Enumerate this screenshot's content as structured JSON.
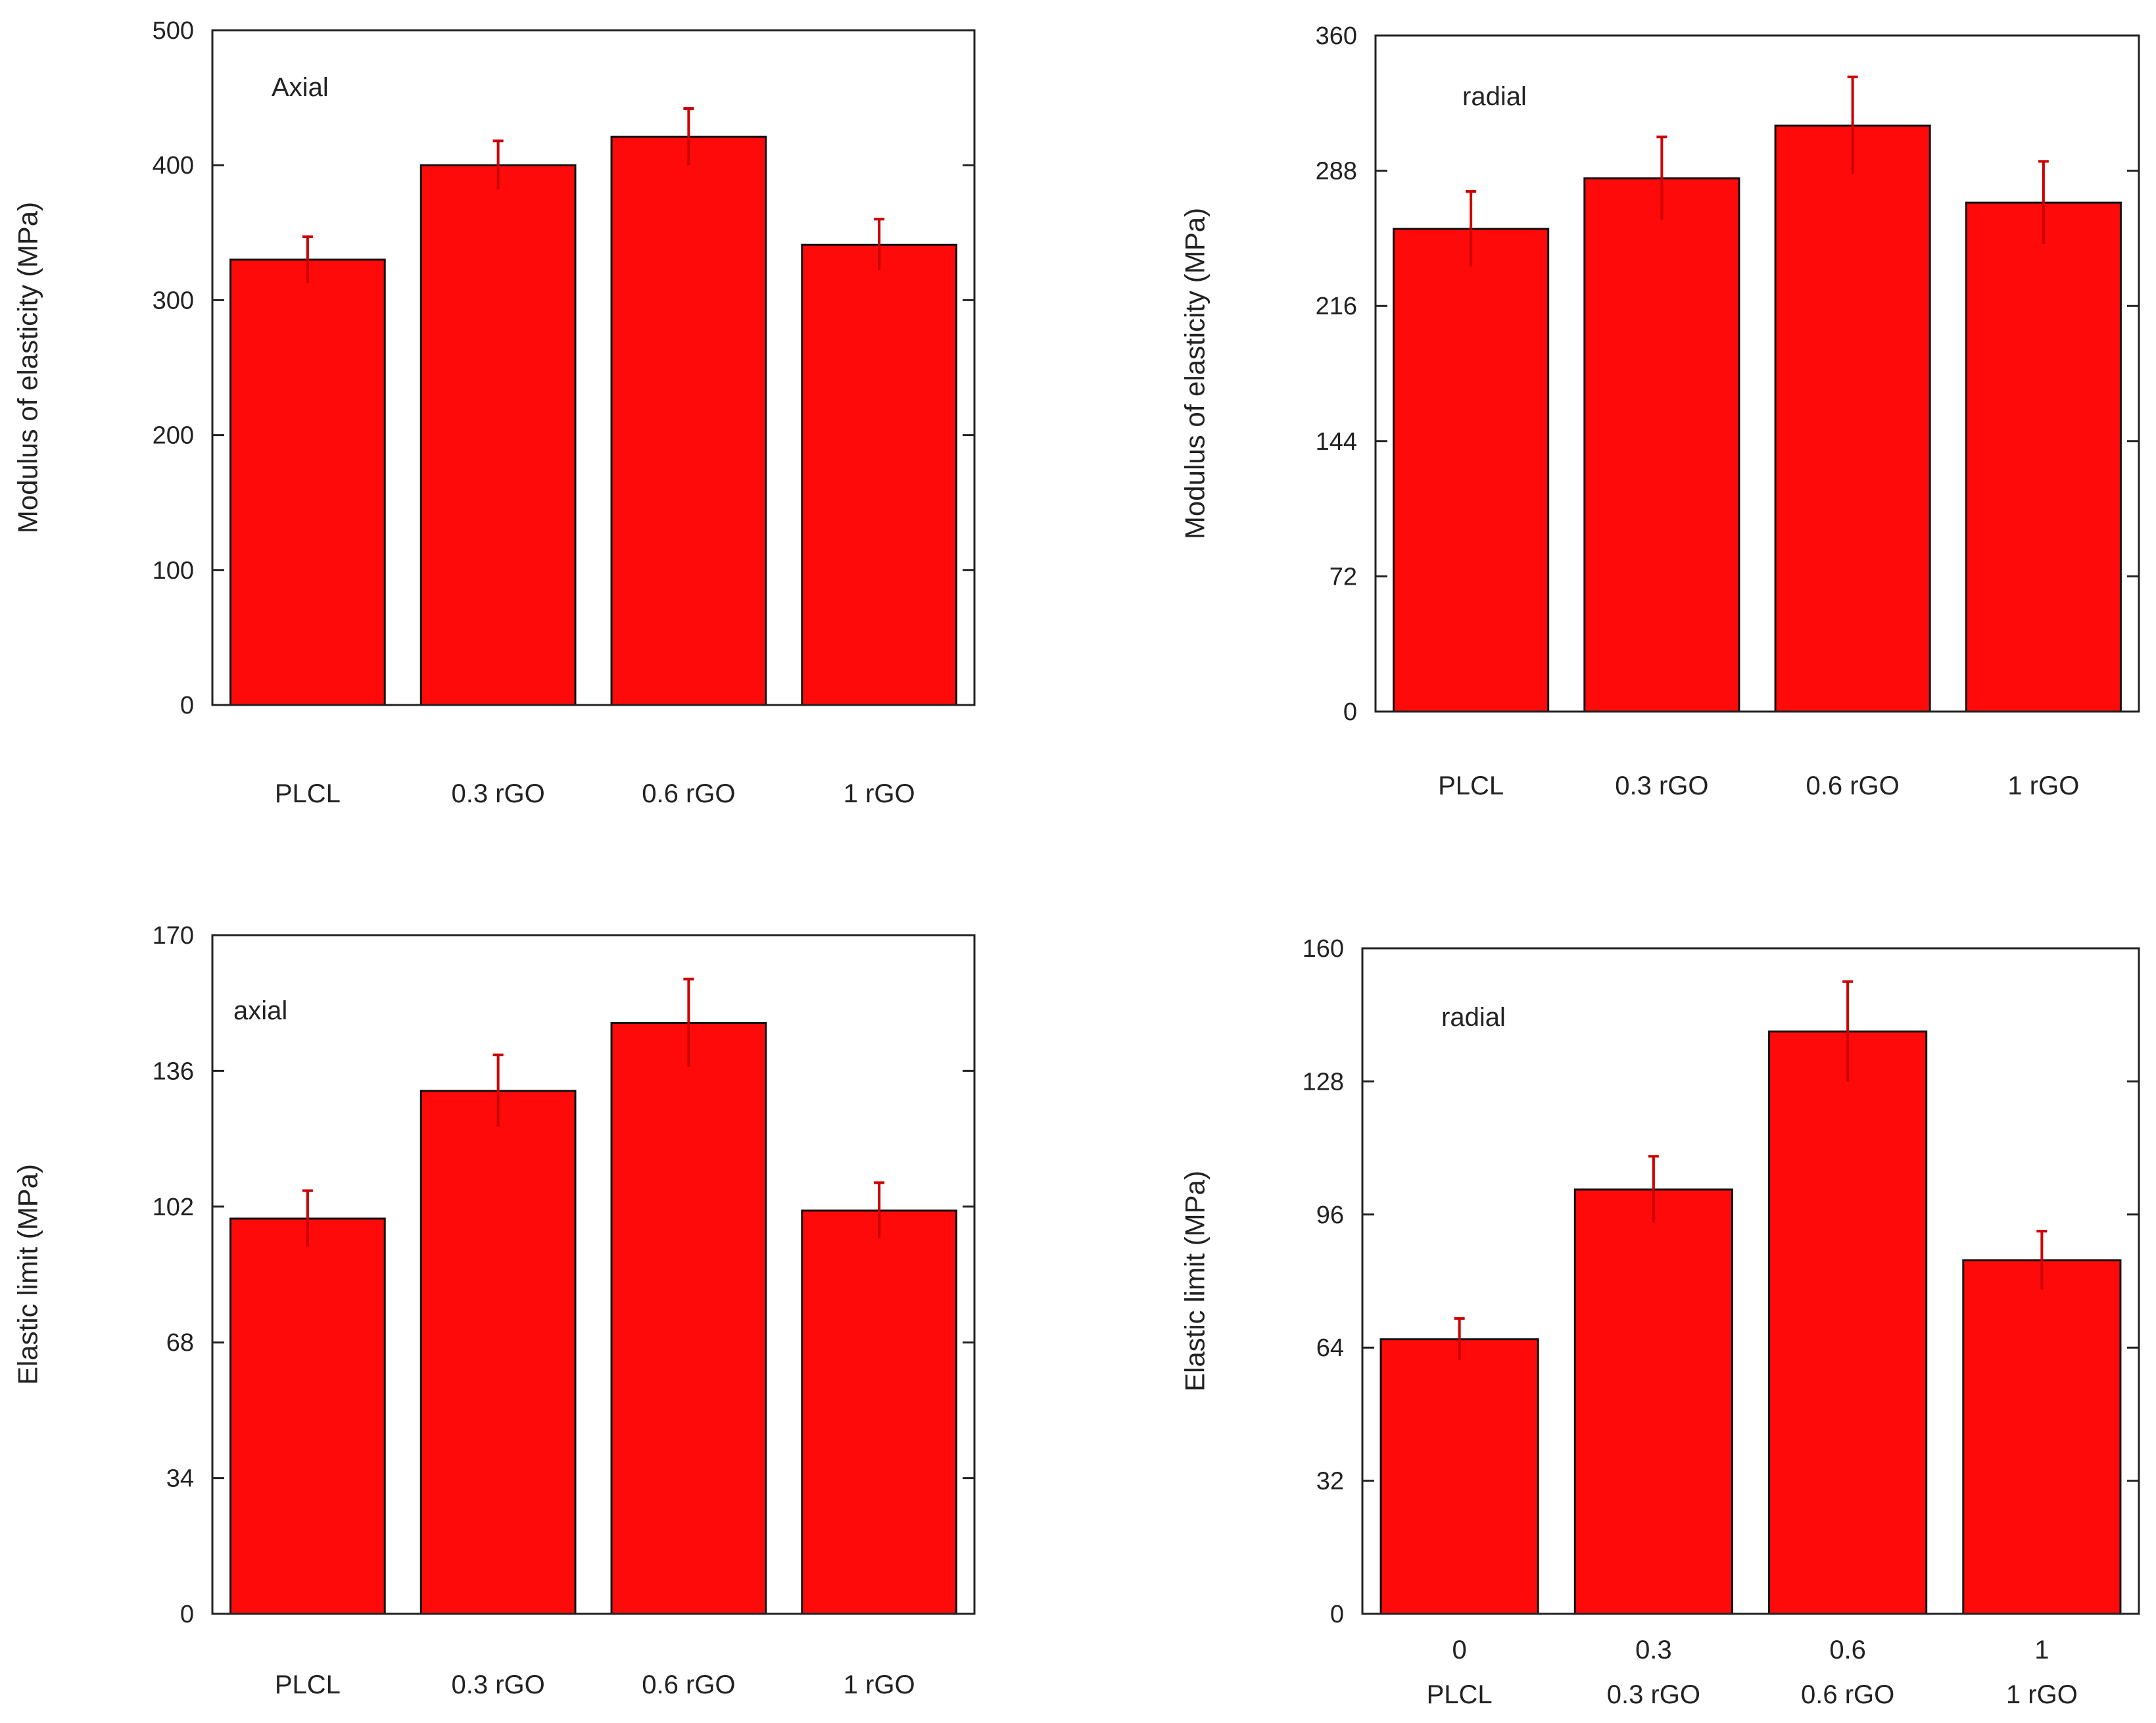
{
  "colors": {
    "bar": "#ff0a0a",
    "error_bar": "#cc0000",
    "axis": "#222222"
  },
  "chart_data": [
    {
      "type": "bar",
      "panel": "top-left",
      "ylabel": "Modulus of elasticity (MPa)",
      "annotation": "Axial",
      "ylim": [
        0,
        500
      ],
      "yticks": [
        0,
        100,
        200,
        300,
        400,
        500
      ],
      "categories": [
        "PLCL",
        "0.3 rGO",
        "0.6 rGO",
        "1 rGO"
      ],
      "values": [
        330,
        400,
        421,
        341
      ],
      "errors": [
        17,
        18,
        21,
        19
      ]
    },
    {
      "type": "bar",
      "panel": "top-right",
      "ylabel": "Modulus of elasticity (MPa)",
      "annotation": "radial",
      "ylim": [
        0,
        360
      ],
      "yticks": [
        0,
        72,
        144,
        216,
        288,
        360
      ],
      "categories": [
        "PLCL",
        "0.3 rGO",
        "0.6 rGO",
        "1 rGO"
      ],
      "values": [
        257,
        284,
        312,
        271
      ],
      "errors": [
        20,
        22,
        26,
        22
      ]
    },
    {
      "type": "bar",
      "panel": "bottom-left",
      "ylabel": "Elastic limit (MPa)",
      "annotation": "axial",
      "ylim": [
        0,
        170
      ],
      "yticks": [
        0,
        34,
        68,
        102,
        136,
        170
      ],
      "categories": [
        "PLCL",
        "0.3 rGO",
        "0.6 rGO",
        "1 rGO"
      ],
      "values": [
        99,
        131,
        148,
        101
      ],
      "errors": [
        7,
        9,
        11,
        7
      ]
    },
    {
      "type": "bar",
      "panel": "bottom-right",
      "ylabel": "Elastic limit (MPa)",
      "annotation": "radial",
      "ylim": [
        0,
        160
      ],
      "yticks": [
        0,
        32,
        64,
        96,
        128,
        160
      ],
      "xticks": [
        "0",
        "0.3",
        "0.6",
        "1"
      ],
      "categories": [
        "PLCL",
        "0.3 rGO",
        "0.6 rGO",
        "1 rGO"
      ],
      "values": [
        66,
        102,
        140,
        85
      ],
      "errors": [
        5,
        8,
        12,
        7
      ]
    }
  ]
}
